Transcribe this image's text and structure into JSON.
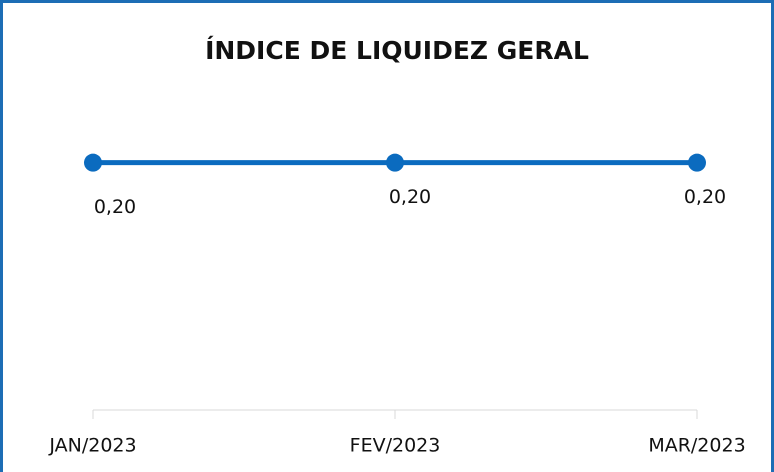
{
  "chart_data": {
    "type": "line",
    "title": "ÍNDICE DE LIQUIDEZ GERAL",
    "categories": [
      "JAN/2023",
      "FEV/2023",
      "MAR/2023"
    ],
    "values": [
      0.2,
      0.2,
      0.2
    ],
    "value_labels": [
      "0,20",
      "0,20",
      "0,20"
    ],
    "color": "#0b6bbf",
    "ylim": [
      0,
      0.3
    ]
  }
}
